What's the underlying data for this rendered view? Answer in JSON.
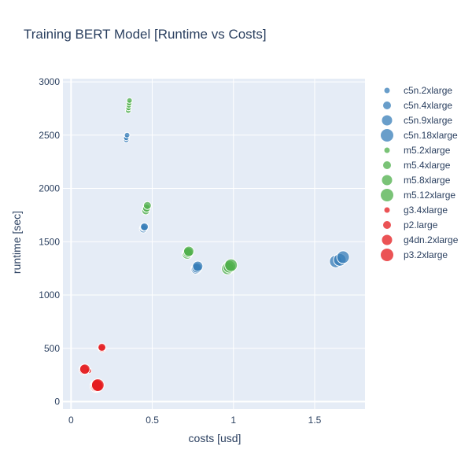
{
  "chart_data": {
    "type": "scatter",
    "title": "Training BERT Model [Runtime vs Costs]",
    "xlabel": "costs [usd]",
    "ylabel": "runtime [sec]",
    "xlim": [
      -0.05,
      1.81
    ],
    "ylim": [
      -70,
      3030
    ],
    "x_ticks": [
      0,
      0.5,
      1,
      1.5
    ],
    "x_tick_labels": [
      "0",
      "0.5",
      "1",
      "1.5"
    ],
    "y_ticks": [
      0,
      500,
      1000,
      1500,
      2000,
      2500,
      3000
    ],
    "y_tick_labels": [
      "0",
      "500",
      "1000",
      "1500",
      "2000",
      "2500",
      "3000"
    ],
    "grid": true,
    "legend_position": "right",
    "series": [
      {
        "name": "c5n.2xlarge",
        "color": "#377eb8",
        "size": "small",
        "x": [
          0.34,
          0.34,
          0.345
        ],
        "y": [
          2455,
          2475,
          2500
        ]
      },
      {
        "name": "c5n.4xlarge",
        "color": "#377eb8",
        "size": "medium",
        "x": [
          0.445,
          0.448,
          0.452
        ],
        "y": [
          1620,
          1635,
          1640
        ]
      },
      {
        "name": "c5n.9xlarge",
        "color": "#377eb8",
        "size": "large",
        "x": [
          0.77,
          0.775,
          0.78
        ],
        "y": [
          1245,
          1255,
          1270
        ]
      },
      {
        "name": "c5n.18xlarge",
        "color": "#377eb8",
        "size": "xlarge",
        "x": [
          1.63,
          1.655,
          1.675
        ],
        "y": [
          1315,
          1330,
          1355
        ]
      },
      {
        "name": "m5.2xlarge",
        "color": "#4daf4a",
        "size": "small",
        "x": [
          0.352,
          0.354,
          0.356,
          0.358,
          0.36
        ],
        "y": [
          2730,
          2755,
          2780,
          2800,
          2825
        ]
      },
      {
        "name": "m5.4xlarge",
        "color": "#4daf4a",
        "size": "medium",
        "x": [
          0.46,
          0.465,
          0.47
        ],
        "y": [
          1790,
          1815,
          1840
        ]
      },
      {
        "name": "m5.8xlarge",
        "color": "#4daf4a",
        "size": "large",
        "x": [
          0.715,
          0.72,
          0.725
        ],
        "y": [
          1385,
          1400,
          1410
        ]
      },
      {
        "name": "m5.12xlarge",
        "color": "#4daf4a",
        "size": "xlarge",
        "x": [
          0.965,
          0.975,
          0.985
        ],
        "y": [
          1250,
          1265,
          1280
        ]
      },
      {
        "name": "g3.4xlarge",
        "color": "#e41a1c",
        "size": "small",
        "x": [
          0.11
        ],
        "y": [
          290
        ]
      },
      {
        "name": "p2.large",
        "color": "#e41a1c",
        "size": "medium",
        "x": [
          0.19,
          0.19
        ],
        "y": [
          500,
          510
        ]
      },
      {
        "name": "g4dn.2xlarge",
        "color": "#e41a1c",
        "size": "large",
        "x": [
          0.08,
          0.085
        ],
        "y": [
          300,
          305
        ]
      },
      {
        "name": "p3.2xlarge",
        "color": "#e41a1c",
        "size": "xlarge",
        "x": [
          0.155,
          0.16,
          0.165
        ],
        "y": [
          145,
          150,
          155
        ]
      }
    ]
  }
}
